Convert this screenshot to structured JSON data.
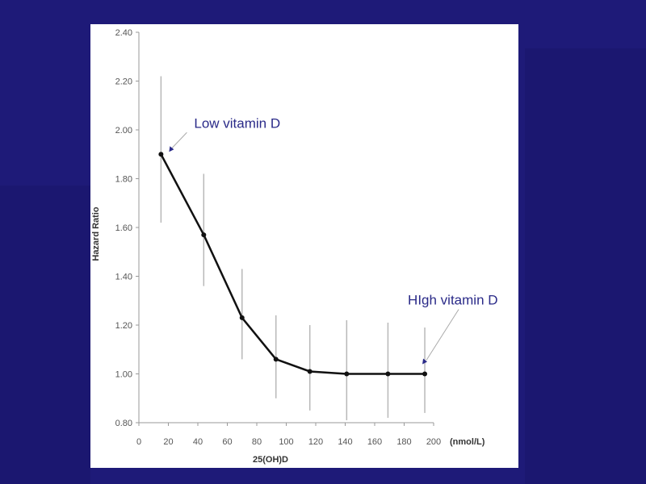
{
  "colors": {
    "background": "#1e1a78",
    "panel": "#ffffff",
    "line": "#111111",
    "errorbar": "#b8b8b8",
    "annotation": "#2a2a88"
  },
  "chart_data": {
    "type": "line",
    "xlabel": "25(OH)D",
    "x_unit_label": "(nmol/L)",
    "ylabel": "Hazard Ratio",
    "xlim": [
      0,
      200
    ],
    "ylim": [
      0.8,
      2.4
    ],
    "x_ticks": [
      "0",
      "20",
      "40",
      "60",
      "80",
      "100",
      "120",
      "140",
      "160",
      "180",
      "200"
    ],
    "y_ticks": [
      "0.80",
      "1.00",
      "1.20",
      "1.40",
      "1.60",
      "1.80",
      "2.00",
      "2.20",
      "2.40"
    ],
    "grid": false,
    "series": [
      {
        "x": [
          15,
          44,
          70,
          93,
          116,
          141,
          169,
          194
        ],
        "y": [
          1.9,
          1.57,
          1.23,
          1.06,
          1.01,
          1.0,
          1.0,
          1.0
        ],
        "lower": [
          1.62,
          1.36,
          1.06,
          0.9,
          0.85,
          0.81,
          0.82,
          0.84
        ],
        "upper": [
          2.22,
          1.82,
          1.43,
          1.24,
          1.2,
          1.22,
          1.21,
          1.19
        ]
      }
    ],
    "annotations": [
      {
        "text": "Low vitamin D",
        "point_index": 0
      },
      {
        "text": "HIgh vitamin D",
        "point_index": 7
      }
    ]
  }
}
